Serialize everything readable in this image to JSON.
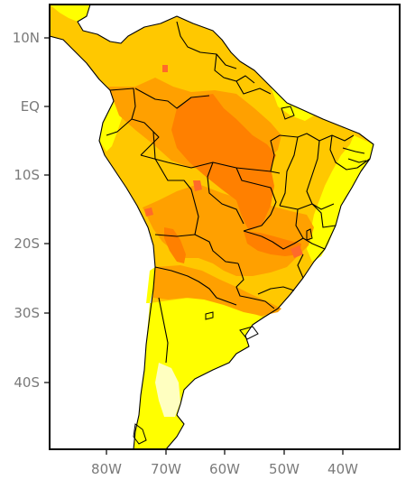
{
  "map": {
    "lat_labels": [
      "10N",
      "EQ",
      "10S",
      "20S",
      "30S",
      "40S"
    ],
    "lon_labels": [
      "80W",
      "70W",
      "60W",
      "50W",
      "40W"
    ],
    "colors": {
      "frame": "#000000",
      "ocean": "#ffffff",
      "pale": "#ffffc0",
      "yellow": "#ffff00",
      "gold": "#ffc800",
      "orange": "#ffa000",
      "dark_orange": "#ff8000",
      "red_orange": "#ff6a2a",
      "borders": "#000000",
      "tick_text": "#7a7a7a"
    }
  }
}
